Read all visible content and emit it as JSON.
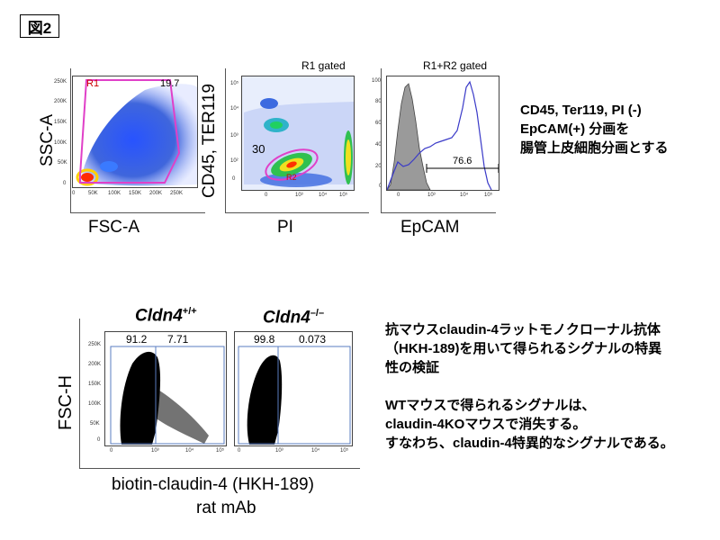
{
  "figure_label": "図2",
  "top_panels": {
    "panel1": {
      "xlabel": "FSC-A",
      "ylabel": "SSC-A",
      "gate_name": "R1",
      "gate_percent": "19.7",
      "x_ticks": [
        "0",
        "50K",
        "100K",
        "150K",
        "200K",
        "250K"
      ],
      "y_ticks": [
        "0",
        "50K",
        "100K",
        "150K",
        "200K",
        "250K"
      ]
    },
    "panel2": {
      "title": "R1 gated",
      "xlabel": "PI",
      "ylabel": "CD45, TER119",
      "gate_name": "R2",
      "gate_percent": "30",
      "x_ticks": [
        "0",
        "10³",
        "10⁴",
        "10⁵"
      ],
      "y_ticks": [
        "0",
        "10²",
        "10³",
        "10⁴",
        "10⁵"
      ]
    },
    "panel3": {
      "title": "R1+R2 gated",
      "xlabel": "EpCAM",
      "gate_percent": "76.6",
      "x_ticks": [
        "0",
        "10³",
        "10⁴",
        "10⁵"
      ],
      "y_ticks": [
        "0",
        "20",
        "40",
        "60",
        "80",
        "100"
      ]
    }
  },
  "top_note": {
    "line1": "CD45, Ter119, PI (-)",
    "line2": "EpCAM(+)  分画を",
    "line3": "腸管上皮細胞分画とする"
  },
  "bottom": {
    "ylabel": "FSC-H",
    "xlabel_line1": "biotin-claudin-4 (HKH-189)",
    "xlabel_line2": "rat mAb",
    "plot_wt": {
      "genotype": "Cldn4",
      "genotype_sup": "+/+",
      "left_percent": "91.2",
      "right_percent": "7.71"
    },
    "plot_ko": {
      "genotype": "Cldn4",
      "genotype_sup": "–/–",
      "left_percent": "99.8",
      "right_percent": "0.073"
    },
    "y_ticks": [
      "0",
      "50K",
      "100K",
      "150K",
      "200K",
      "250K"
    ],
    "x_ticks": [
      "0",
      "10³",
      "10⁴",
      "10⁵"
    ]
  },
  "bottom_note": {
    "p1_line1": "抗マウスclaudin-4ラットモノクローナル抗体",
    "p1_line2": "（HKH-189)を用いて得られるシグナルの特異",
    "p1_line3": "性の検証",
    "p2_line1": "WTマウスで得られるシグナルは、",
    "p2_line2": "claudin-4KOマウスで消失する。",
    "p2_line3": "すなわち、claudin-4特異的なシグナルである。"
  },
  "colors": {
    "gate_magenta": "#e040c8",
    "histogram_blue": "#3a3ac8",
    "histogram_fill": "#9a9a9a",
    "gate_box_blue": "#5a7cc0"
  },
  "chart_data": [
    {
      "type": "scatter",
      "title": "",
      "xlabel": "FSC-A",
      "ylabel": "SSC-A",
      "xlim": [
        0,
        262144
      ],
      "ylim": [
        0,
        262144
      ],
      "gates": [
        {
          "name": "R1",
          "percent": 19.7
        }
      ]
    },
    {
      "type": "scatter",
      "title": "R1 gated",
      "xlabel": "PI",
      "ylabel": "CD45, TER119",
      "x_scale": "log",
      "y_scale": "log",
      "gates": [
        {
          "name": "R2",
          "percent": 30
        }
      ]
    },
    {
      "type": "area",
      "title": "R1+R2 gated",
      "xlabel": "EpCAM",
      "x_scale": "log",
      "ylim": [
        0,
        100
      ],
      "series": [
        {
          "fill": "gray"
        },
        {
          "fill": "none",
          "color": "blue"
        }
      ],
      "gates": [
        {
          "percent": 76.6
        }
      ]
    },
    {
      "type": "scatter",
      "title": "Cldn4+/+",
      "xlabel": "biotin-claudin-4 (HKH-189) rat mAb",
      "ylabel": "FSC-H",
      "gates": [
        {
          "percent": 91.2
        },
        {
          "percent": 7.71
        }
      ]
    },
    {
      "type": "scatter",
      "title": "Cldn4–/–",
      "xlabel": "biotin-claudin-4 (HKH-189) rat mAb",
      "ylabel": "FSC-H",
      "gates": [
        {
          "percent": 99.8
        },
        {
          "percent": 0.073
        }
      ]
    }
  ]
}
